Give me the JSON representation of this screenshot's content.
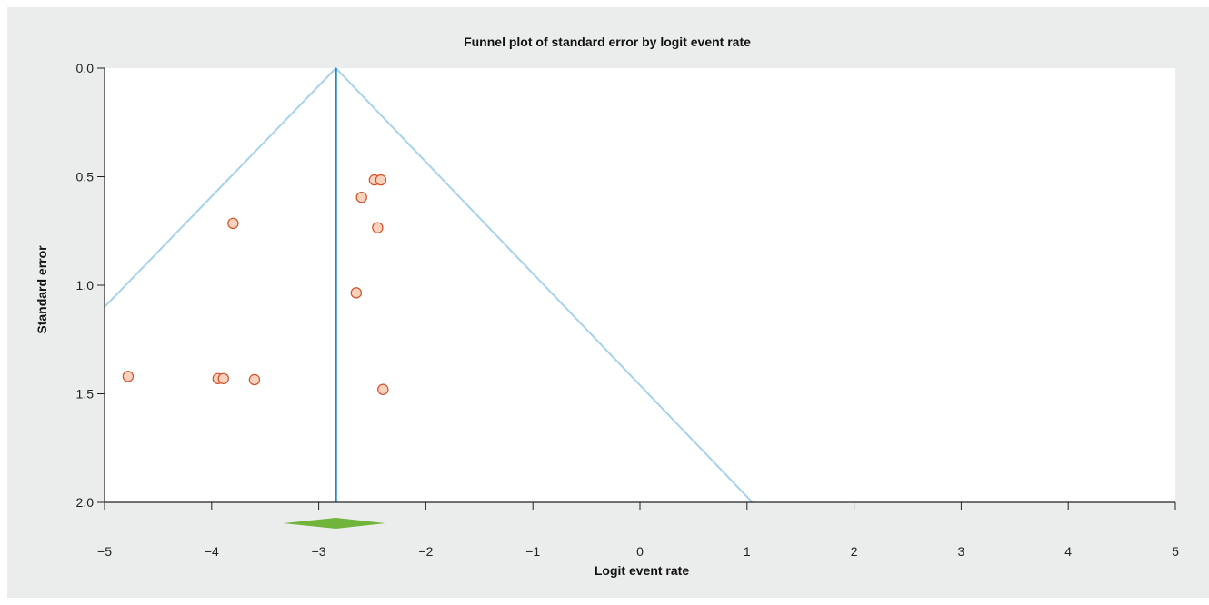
{
  "chart_data": {
    "type": "scatter",
    "title": "Funnel plot of standard error by logit event rate",
    "xlabel": "Logit event rate",
    "ylabel": "Standard error",
    "xlim": [
      -5,
      5
    ],
    "ylim": [
      0,
      2
    ],
    "y_inverted": true,
    "x_ticks": [
      -5,
      -4,
      -3,
      -2,
      -1,
      0,
      1,
      2,
      3,
      4,
      5
    ],
    "x_tick_labels": [
      "−5",
      "−4",
      "−3",
      "−2",
      "−1",
      "0",
      "1",
      "2",
      "3",
      "4",
      "5"
    ],
    "y_ticks": [
      0,
      0.5,
      1,
      1.5,
      2
    ],
    "y_tick_labels": [
      "0.0",
      "0.5",
      "1.0",
      "1.5",
      "2.0"
    ],
    "grid": false,
    "pooled_estimate": -2.84,
    "pooled_ci": [
      -3.33,
      -2.38
    ],
    "funnel": {
      "apex": [
        -2.84,
        0.0
      ],
      "left_end": [
        -5.0,
        1.1
      ],
      "right_end": [
        1.05,
        2.0
      ]
    },
    "points": [
      {
        "x": -4.78,
        "y": 1.42
      },
      {
        "x": -3.94,
        "y": 1.43
      },
      {
        "x": -3.89,
        "y": 1.43
      },
      {
        "x": -3.6,
        "y": 1.435
      },
      {
        "x": -3.8,
        "y": 0.715
      },
      {
        "x": -2.65,
        "y": 1.035
      },
      {
        "x": -2.6,
        "y": 0.595
      },
      {
        "x": -2.48,
        "y": 0.515
      },
      {
        "x": -2.42,
        "y": 0.515
      },
      {
        "x": -2.45,
        "y": 0.735
      },
      {
        "x": -2.4,
        "y": 1.48
      }
    ],
    "colors": {
      "background": "#ebecec",
      "plot_area": "#ffffff",
      "funnel_line": "#a6d2ec",
      "mean_line": "#1e8bc9",
      "point_fill": "#f8d2bc",
      "point_stroke": "#d2512a",
      "diamond": "#70b43c",
      "axis": "#222222"
    }
  }
}
